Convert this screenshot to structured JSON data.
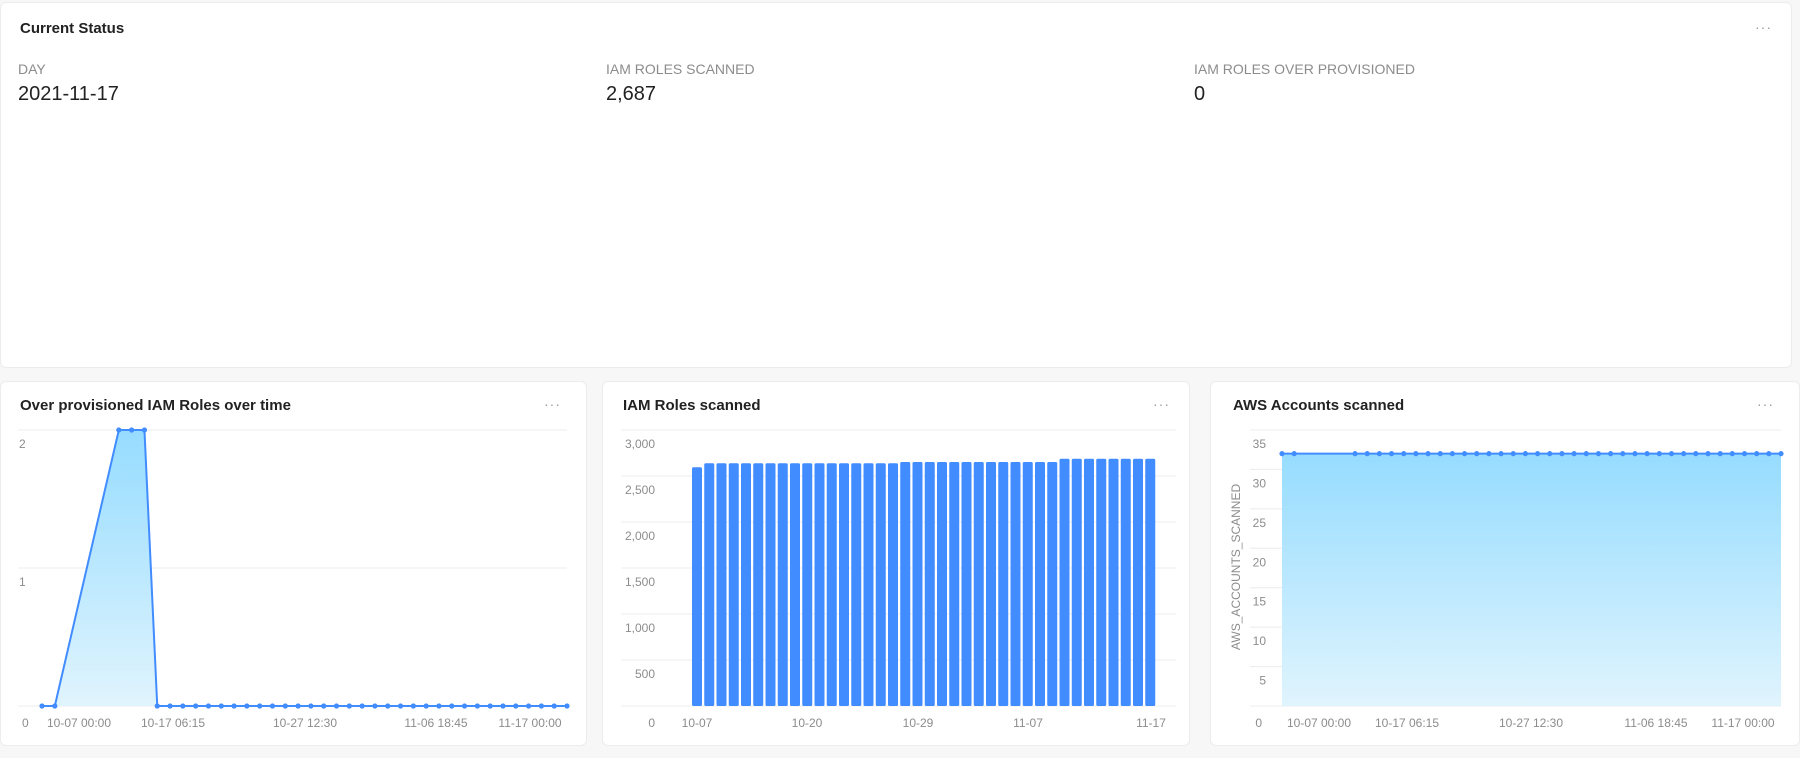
{
  "status_card": {
    "title": "Current Status",
    "menu_icon": "ellipsis-icon",
    "stats": [
      {
        "label": "DAY",
        "value": "2021-11-17"
      },
      {
        "label": "IAM ROLES SCANNED",
        "value": "2,687"
      },
      {
        "label": "IAM ROLES OVER PROVISIONED",
        "value": "0"
      }
    ]
  },
  "colors": {
    "accent": "#418cff",
    "area_top": "#96dcff",
    "area_bottom": "#e0f4fd",
    "grid": "#ececec"
  },
  "chart_data": [
    {
      "type": "area",
      "title": "Over provisioned IAM Roles over time",
      "ylim": [
        0,
        2
      ],
      "yticks": [
        "0",
        "1",
        "2"
      ],
      "xticks": [
        "10-07 00:00",
        "10-17 06:15",
        "10-27 12:30",
        "11-06 18:45",
        "11-17 00:00"
      ],
      "grid": true,
      "x": [
        "10-07",
        "10-08",
        "10-13",
        "10-14",
        "10-15",
        "10-16",
        "10-17",
        "10-18",
        "10-19",
        "10-20",
        "10-21",
        "10-22",
        "10-23",
        "10-24",
        "10-25",
        "10-26",
        "10-27",
        "10-28",
        "10-29",
        "10-30",
        "10-31",
        "11-01",
        "11-02",
        "11-03",
        "11-04",
        "11-05",
        "11-06",
        "11-07",
        "11-08",
        "11-09",
        "11-10",
        "11-11",
        "11-12",
        "11-13",
        "11-14",
        "11-15",
        "11-16",
        "11-17"
      ],
      "values": [
        0,
        0,
        2,
        2,
        2,
        0,
        0,
        0,
        0,
        0,
        0,
        0,
        0,
        0,
        0,
        0,
        0,
        0,
        0,
        0,
        0,
        0,
        0,
        0,
        0,
        0,
        0,
        0,
        0,
        0,
        0,
        0,
        0,
        0,
        0,
        0,
        0,
        0
      ]
    },
    {
      "type": "bar",
      "title": "IAM Roles scanned",
      "ylim": [
        0,
        3000
      ],
      "yticks": [
        "0",
        "500",
        "1,000",
        "1,500",
        "2,000",
        "2,500",
        "3,000"
      ],
      "xticks": [
        "10-07",
        "10-20",
        "10-29",
        "11-07",
        "11-17"
      ],
      "grid": true,
      "categories": [
        "10-07",
        "10-08",
        "10-13",
        "10-14",
        "10-15",
        "10-16",
        "10-17",
        "10-18",
        "10-19",
        "10-20",
        "10-21",
        "10-22",
        "10-23",
        "10-24",
        "10-25",
        "10-26",
        "10-27",
        "10-28",
        "10-29",
        "10-30",
        "10-31",
        "11-01",
        "11-02",
        "11-03",
        "11-04",
        "11-05",
        "11-06",
        "11-07",
        "11-08",
        "11-09",
        "11-10",
        "11-11",
        "11-12",
        "11-13",
        "11-14",
        "11-15",
        "11-16",
        "11-17"
      ],
      "values": [
        2595,
        2638,
        2638,
        2638,
        2638,
        2638,
        2638,
        2638,
        2638,
        2638,
        2638,
        2638,
        2638,
        2638,
        2638,
        2638,
        2638,
        2652,
        2652,
        2652,
        2652,
        2652,
        2652,
        2652,
        2652,
        2652,
        2652,
        2652,
        2652,
        2652,
        2687,
        2687,
        2687,
        2687,
        2687,
        2687,
        2687,
        2687
      ]
    },
    {
      "type": "area",
      "title": "AWS Accounts scanned",
      "ylabel": "AWS_ACCOUNTS_SCANNED",
      "ylim": [
        0,
        35
      ],
      "yticks": [
        "0",
        "5",
        "10",
        "15",
        "20",
        "25",
        "30",
        "35"
      ],
      "xticks": [
        "10-07 00:00",
        "10-17 06:15",
        "10-27 12:30",
        "11-06 18:45",
        "11-17 00:00"
      ],
      "grid": true,
      "x": [
        "10-07",
        "10-08",
        "10-13",
        "10-14",
        "10-15",
        "10-16",
        "10-17",
        "10-18",
        "10-19",
        "10-20",
        "10-21",
        "10-22",
        "10-23",
        "10-24",
        "10-25",
        "10-26",
        "10-27",
        "10-28",
        "10-29",
        "10-30",
        "10-31",
        "11-01",
        "11-02",
        "11-03",
        "11-04",
        "11-05",
        "11-06",
        "11-07",
        "11-08",
        "11-09",
        "11-10",
        "11-11",
        "11-12",
        "11-13",
        "11-14",
        "11-15",
        "11-16",
        "11-17"
      ],
      "values": [
        32,
        32,
        32,
        32,
        32,
        32,
        32,
        32,
        32,
        32,
        32,
        32,
        32,
        32,
        32,
        32,
        32,
        32,
        32,
        32,
        32,
        32,
        32,
        32,
        32,
        32,
        32,
        32,
        32,
        32,
        32,
        32,
        32,
        32,
        32,
        32,
        32,
        32
      ]
    }
  ]
}
